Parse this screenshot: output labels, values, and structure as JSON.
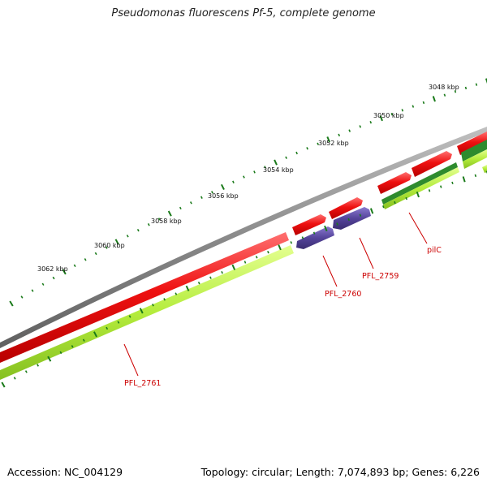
{
  "title": "Pseudomonas fluorescens Pf-5, complete genome",
  "footer": {
    "accession": "Accession: NC_004129",
    "summary": "Topology: circular; Length: 7,074,893 bp; Genes: 6,226"
  },
  "colors": {
    "backbone": "#8a8a8a",
    "forward_gene": "#ee1111",
    "reverse_gene": "#55449a",
    "gc_track": "#b4ec3c",
    "gc_dark": "#2e8b2e",
    "ticks": "#1a7a1a",
    "label": "#cc0000"
  },
  "scale_labels": [
    "3062 kbp",
    "3060 kbp",
    "3058 kbp",
    "3056 kbp",
    "3054 kbp",
    "3052 kbp",
    "3050 kbp",
    "3048 kbp"
  ],
  "gene_labels": [
    "PFL_2761",
    "PFL_2760",
    "PFL_2759",
    "pilC"
  ]
}
